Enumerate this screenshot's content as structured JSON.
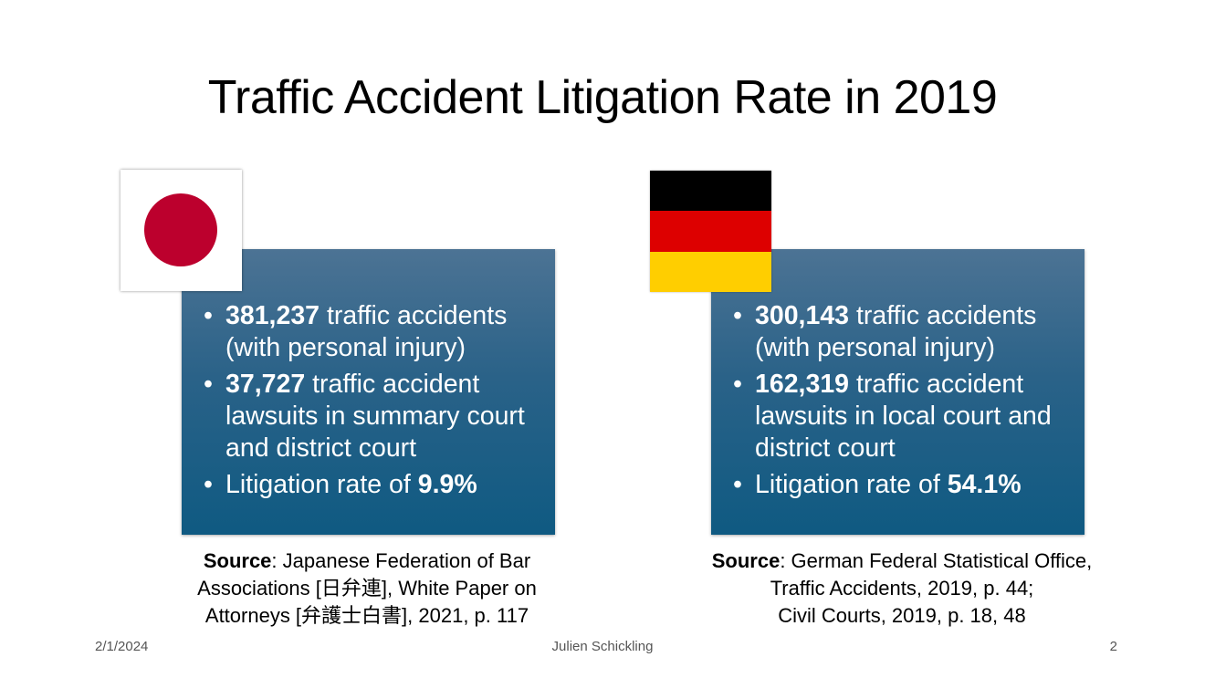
{
  "slide": {
    "title": "Traffic Accident Litigation Rate in 2019"
  },
  "japan": {
    "flag_colors": {
      "background": "#ffffff",
      "disc": "#bc002d"
    },
    "bullets": [
      {
        "bold": "381,237",
        "text": " traffic accidents (with personal injury)"
      },
      {
        "bold": "37,727",
        "text": " traffic accident lawsuits in summary court and district court"
      },
      {
        "prefix": "Litigation rate of ",
        "bold": "9.9%"
      }
    ],
    "source": {
      "label": "Source",
      "lines": [
        ": Japanese Federation of Bar",
        "Associations  [日弁連], White Paper on",
        "Attorneys [弁護士白書], 2021, p. 117"
      ]
    }
  },
  "germany": {
    "flag_colors": [
      "#000000",
      "#dd0000",
      "#ffce00"
    ],
    "bullets": [
      {
        "bold": "300,143",
        "text": " traffic accidents (with personal injury)"
      },
      {
        "bold": "162,319",
        "text": " traffic accident lawsuits in local court and district court"
      },
      {
        "prefix": "Litigation rate of ",
        "bold": "54.1%"
      }
    ],
    "source": {
      "label": "Source",
      "lines": [
        ": German Federal Statistical Office,",
        "Traffic Accidents, 2019, p. 44;",
        "Civil Courts, 2019, p. 18, 48"
      ]
    }
  },
  "footer": {
    "date": "2/1/2024",
    "author": "Julien Schickling",
    "page": "2"
  },
  "colors": {
    "box_gradient_top": "#4c7394",
    "box_gradient_bottom": "#0f5a82"
  }
}
